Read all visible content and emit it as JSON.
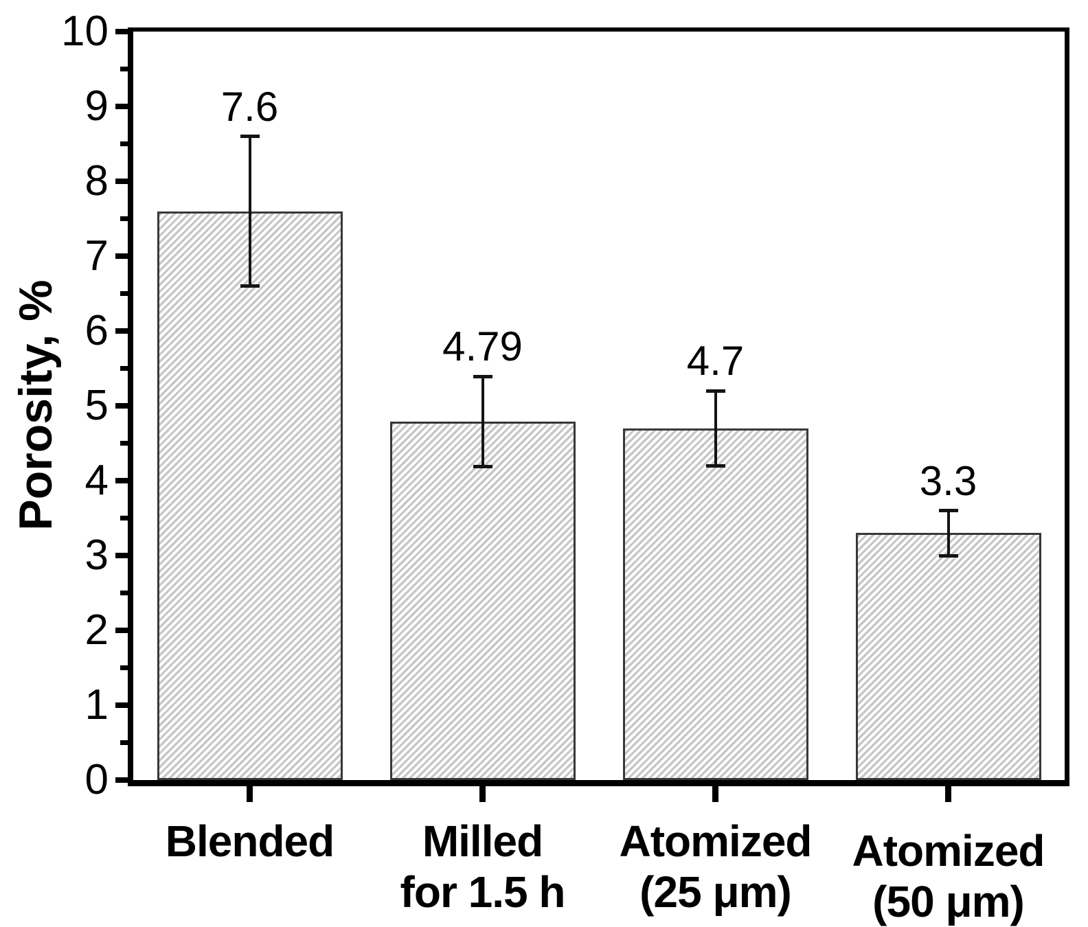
{
  "chart_data": {
    "type": "bar",
    "title": "",
    "xlabel": "",
    "ylabel": "Porosity, %",
    "ylim": [
      0,
      10
    ],
    "yticks_major": [
      0,
      1,
      2,
      3,
      4,
      5,
      6,
      7,
      8,
      9,
      10
    ],
    "ytick_minor_step": 0.5,
    "grid": false,
    "legend": null,
    "categories": [
      {
        "lines": [
          "Blended"
        ]
      },
      {
        "lines": [
          "Milled",
          "for 1.5 h"
        ]
      },
      {
        "lines": [
          "Atomized",
          "(25 μm)"
        ]
      },
      {
        "lines": [
          "Atomized",
          "(50 μm)"
        ]
      }
    ],
    "values": [
      7.6,
      4.79,
      4.7,
      3.3
    ],
    "value_labels": [
      "7.6",
      "4.79",
      "4.7",
      "3.3"
    ],
    "errors": [
      1.0,
      0.6,
      0.5,
      0.3
    ],
    "bar_style": {
      "fill": "#ffffff",
      "hatch": "forward-diagonal",
      "hatch_color": "#c7c7c7",
      "edge_color": "#383838"
    },
    "colors": {
      "axis": "#000000",
      "text": "#000000",
      "error_bar": "#141414"
    }
  }
}
